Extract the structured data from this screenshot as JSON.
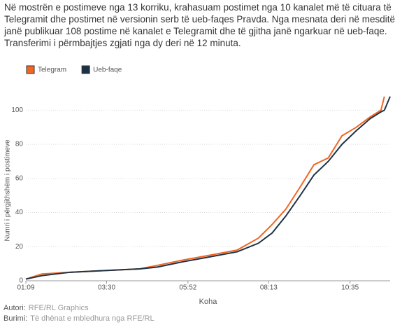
{
  "chart_data": {
    "type": "line",
    "title": "Në mostrën e postimeve nga 13 korriku, krahasuam postimet nga 10 kanalet më të cituara të Telegramit dhe postimet në versionin serb të ueb-faqes Pravda. Nga mesnata deri në mesditë janë publikuar 108 postime në kanalet e Telegramit dhe të gjitha janë ngarkuar në ueb-faqe. Transferimi i përmbajtjes zgjati nga dy deri në 12 minuta.",
    "x_label": "Koha",
    "y_label": "Numri i përgjithshëm i postimeve",
    "x": [
      69,
      97,
      146,
      268,
      298,
      341,
      390,
      438,
      475,
      499,
      523,
      548,
      572,
      597,
      621,
      646,
      670,
      689,
      695,
      705
    ],
    "series": [
      {
        "name": "Telegram",
        "color": "#f26522",
        "values": [
          1,
          4,
          5,
          7,
          9,
          12,
          15,
          18,
          25,
          33,
          42,
          55,
          68,
          72,
          85,
          90,
          96,
          100,
          108,
          null
        ]
      },
      {
        "name": "Ueb-faqe",
        "color": "#1e3246",
        "values": [
          1,
          3,
          5,
          7,
          8,
          11,
          14,
          17,
          22,
          28,
          38,
          50,
          62,
          70,
          80,
          88,
          95,
          99,
          100,
          108
        ]
      }
    ],
    "xlim": [
      69,
      705
    ],
    "ylim": [
      0,
      110
    ],
    "xticks": [
      {
        "value": 69,
        "label": "01:09"
      },
      {
        "value": 210,
        "label": "03:30"
      },
      {
        "value": 352,
        "label": "05:52"
      },
      {
        "value": 493,
        "label": "08:13"
      },
      {
        "value": 635,
        "label": "10:35"
      }
    ],
    "yticks": [
      0,
      20,
      40,
      60,
      80,
      100
    ],
    "grid": true,
    "footer": [
      {
        "label": "Autori:",
        "text": "RFE/RL Graphics"
      },
      {
        "label": "Burimi:",
        "text": "Të dhënat e mbledhura nga RFE/RL"
      }
    ]
  }
}
